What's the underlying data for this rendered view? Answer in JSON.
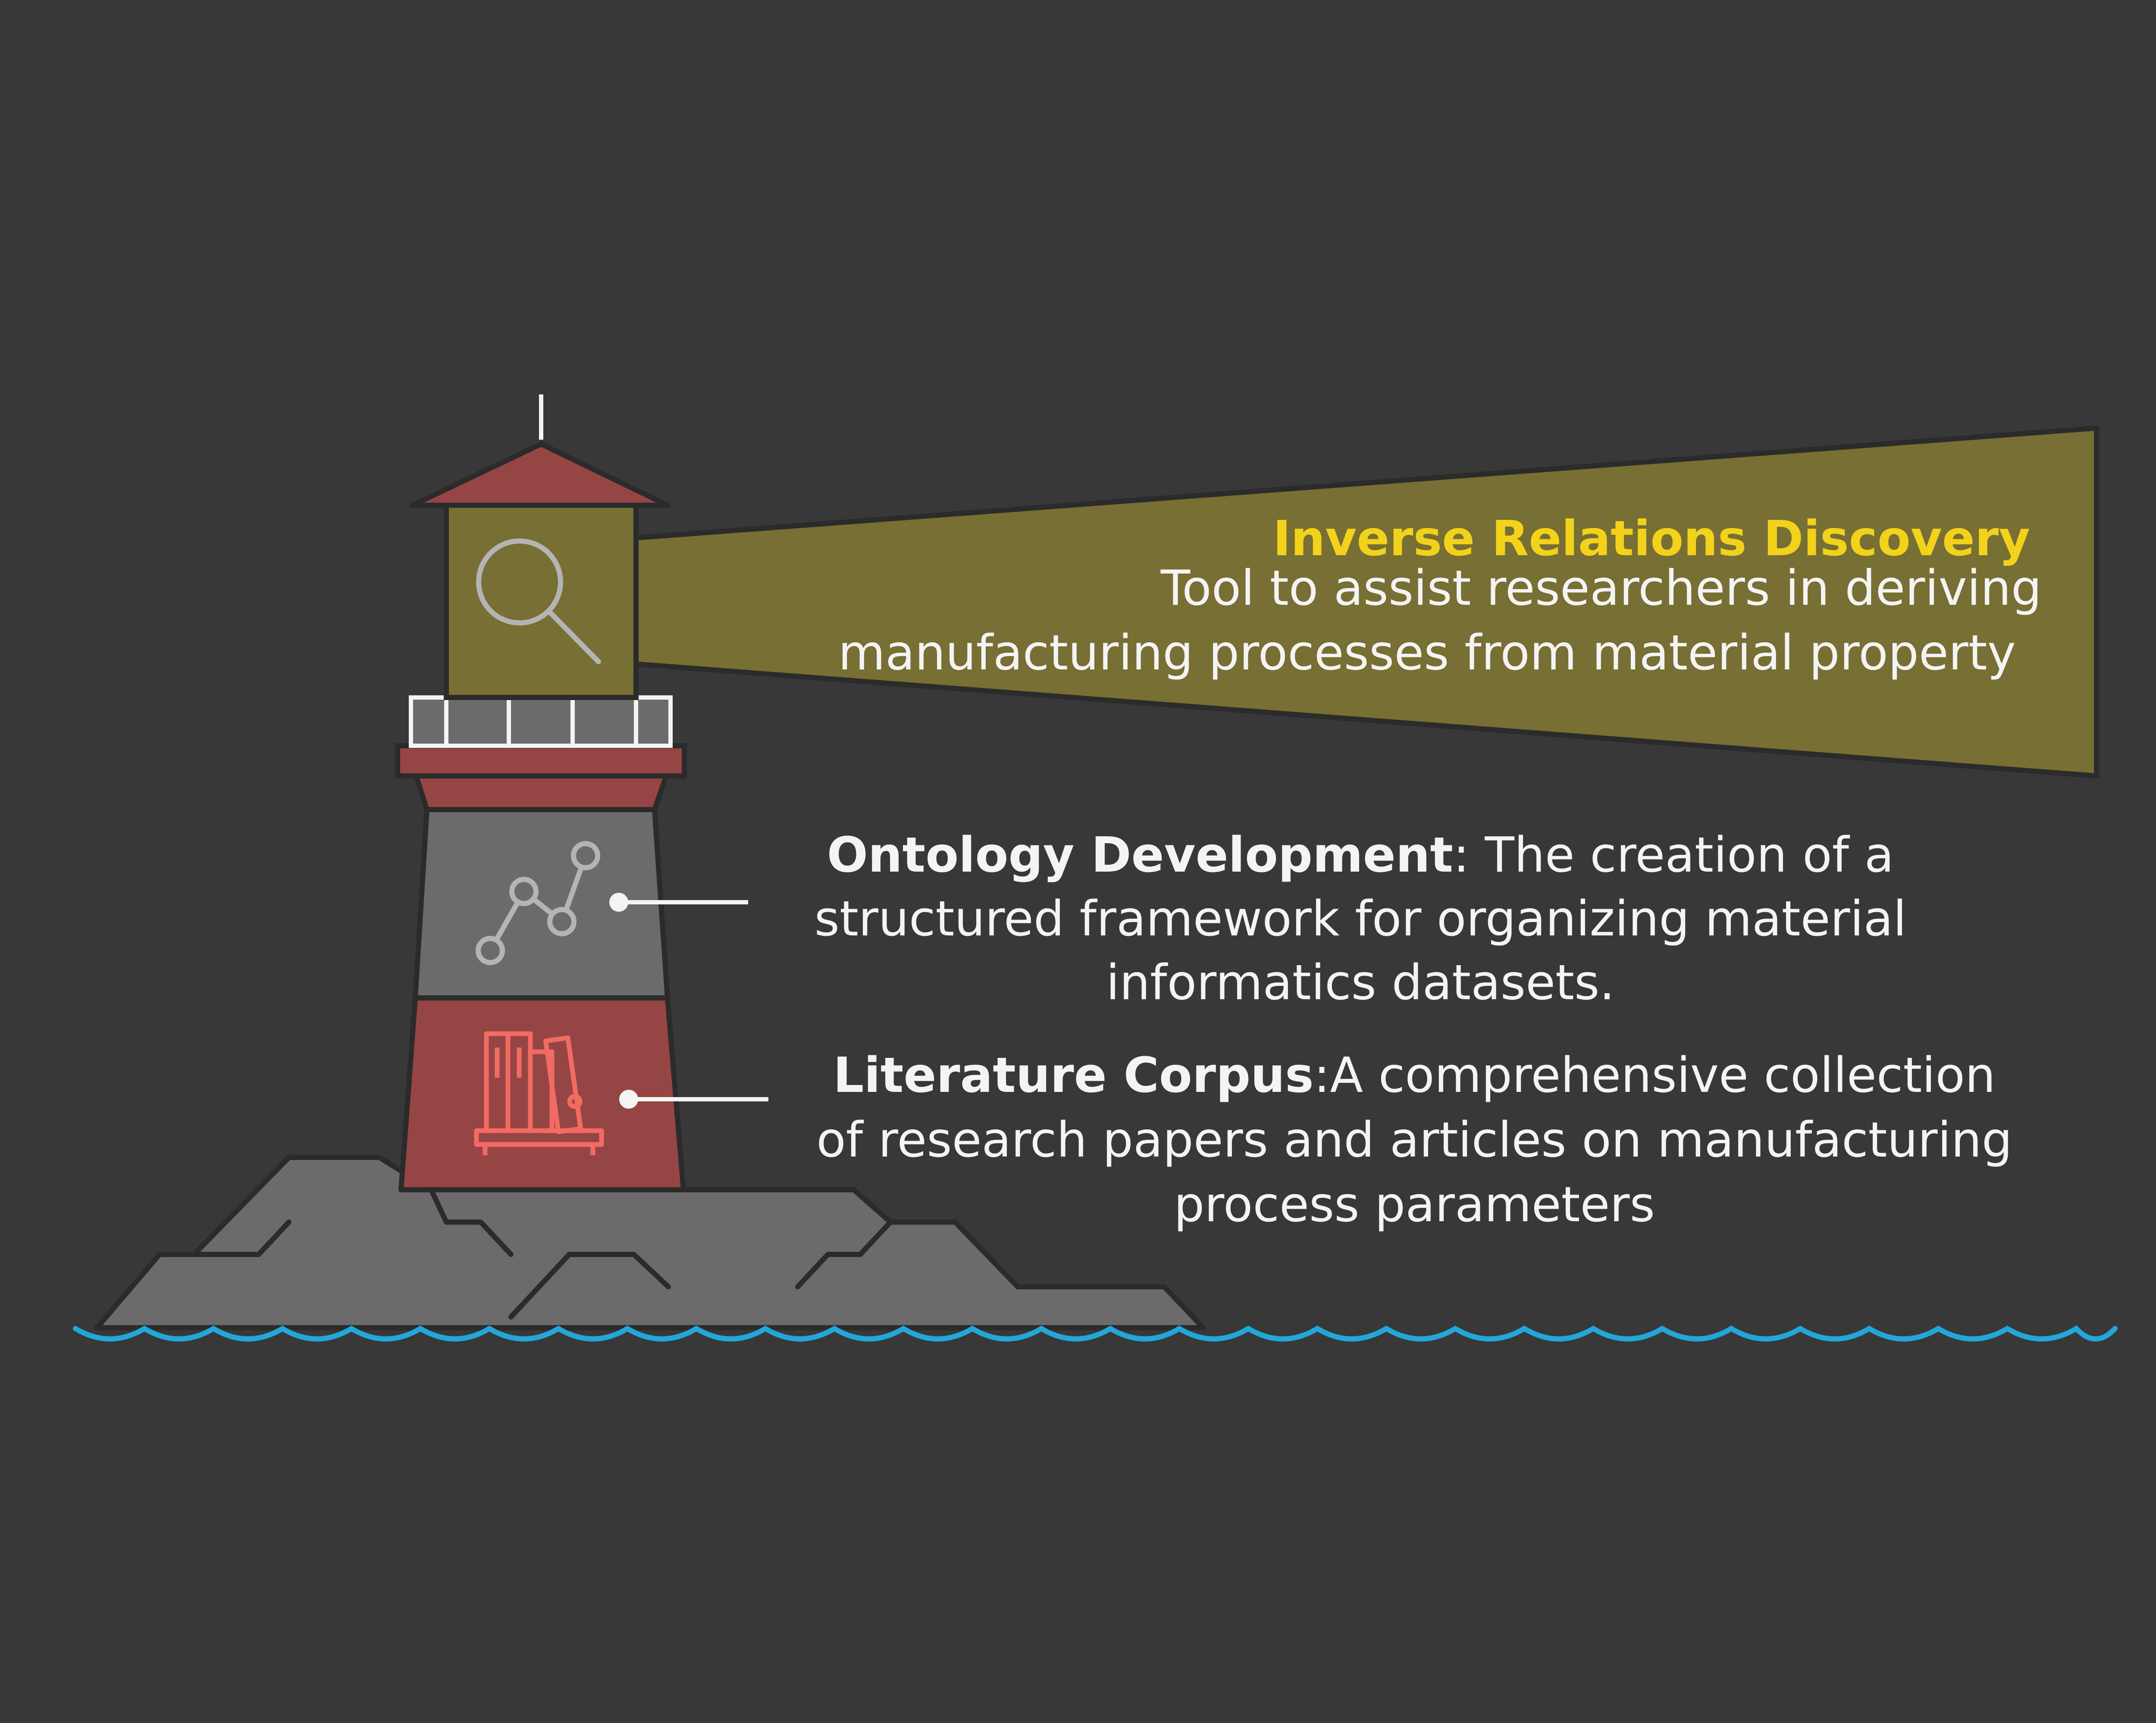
{
  "colors": {
    "background": "#383838",
    "beam": "#776f33",
    "roof": "#964545",
    "tower_red": "#964545",
    "tower_gray": "#6b6b6b",
    "rock": "#6b6b6b",
    "water": "#22a7db",
    "highlight": "#f2d21b",
    "text": "#f4f4f4",
    "outline": "#2b2b2b"
  },
  "icons": {
    "lantern": "magnifier-icon",
    "gray_band": "line-chart-icon",
    "red_band": "bookshelf-icon"
  },
  "sections": {
    "beam": {
      "title": "Inverse Relations Discovery",
      "line1": "Tool to assist researchers in deriving",
      "line2": "manufacturing processes from material property"
    },
    "ontology": {
      "title": "Ontology Development",
      "rest": ": The creation of a",
      "line2": "structured framework for organizing material",
      "line3": "informatics datasets."
    },
    "literature": {
      "title": "Literature Corpus",
      "rest": ":A comprehensive collection",
      "line2": "of research papers and articles on manufacturing",
      "line3": "process parameters"
    }
  }
}
